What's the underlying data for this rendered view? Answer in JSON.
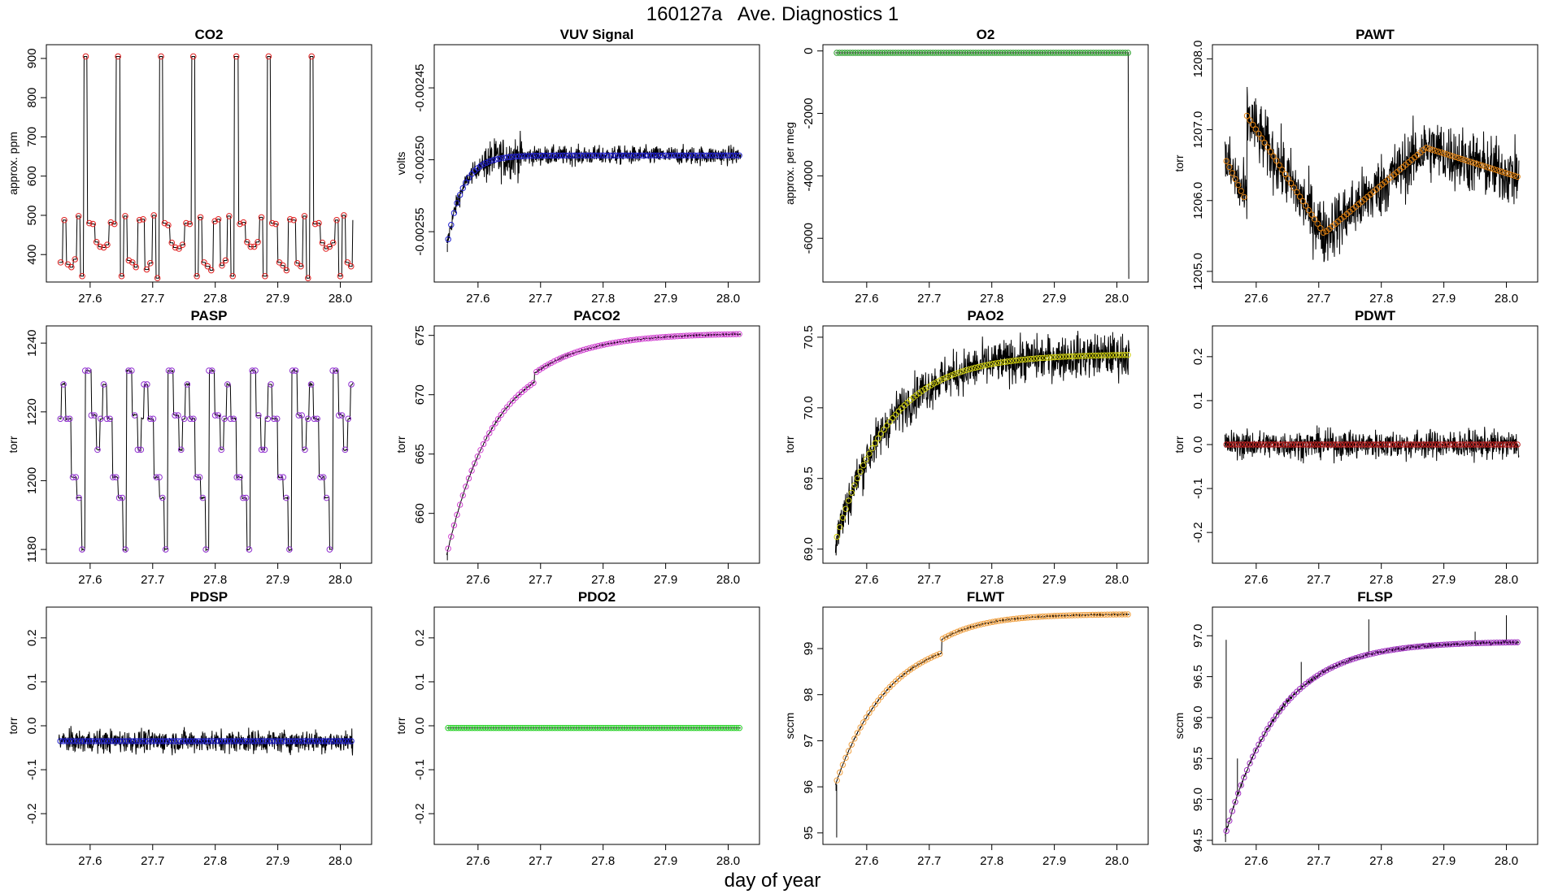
{
  "figure": {
    "title": "160127a   Ave. Diagnostics 1",
    "xlabel": "day of year"
  },
  "chart_data": [
    {
      "type": "line",
      "title": "CO2",
      "ylabel": "approx. ppm",
      "xlim": [
        27.53,
        28.05
      ],
      "ylim": [
        330,
        935
      ],
      "xticks": [
        "27.6",
        "27.7",
        "27.8",
        "27.9",
        "28.0"
      ],
      "yticks": [
        "400",
        "500",
        "600",
        "700",
        "800",
        "900"
      ],
      "series": [
        {
          "name": "",
          "color": "#000000",
          "marker_color": "#e02020",
          "shape": "co2"
        }
      ],
      "x": [
        27.55,
        28.02
      ]
    },
    {
      "type": "line",
      "title": "VUV Signal",
      "ylabel": "volts",
      "xlim": [
        27.53,
        28.05
      ],
      "ylim": [
        -0.002585,
        -0.00242
      ],
      "xticks": [
        "27.6",
        "27.7",
        "27.8",
        "27.9",
        "28.0"
      ],
      "yticks": [
        "-0.00255",
        "-0.00250",
        "-0.00245"
      ],
      "series": [
        {
          "name": "",
          "color": "#000000",
          "marker_color": "#2020d0",
          "shape": "vuv"
        }
      ],
      "x": [
        27.55,
        28.02
      ]
    },
    {
      "type": "line",
      "title": "O2",
      "ylabel": "approx. per meg",
      "xlim": [
        27.53,
        28.05
      ],
      "ylim": [
        -7400,
        200
      ],
      "xticks": [
        "27.6",
        "27.7",
        "27.8",
        "27.9",
        "28.0"
      ],
      "yticks": [
        "-6000",
        "-4000",
        "-2000",
        "0"
      ],
      "series": [
        {
          "name": "",
          "color": "#000000",
          "marker_color": "#2ea02e",
          "shape": "o2"
        }
      ],
      "x": [
        27.55,
        28.02
      ]
    },
    {
      "type": "line",
      "title": "PAWT",
      "ylabel": "torr",
      "xlim": [
        27.53,
        28.05
      ],
      "ylim": [
        1204.85,
        1208.2
      ],
      "xticks": [
        "27.6",
        "27.7",
        "27.8",
        "27.9",
        "28.0"
      ],
      "yticks": [
        "1205.0",
        "1206.0",
        "1207.0",
        "1208.0"
      ],
      "series": [
        {
          "name": "",
          "color": "#000000",
          "marker_color": "#e08010",
          "shape": "pawt"
        }
      ],
      "x": [
        27.55,
        28.02
      ]
    },
    {
      "type": "line",
      "title": "PASP",
      "ylabel": "torr",
      "xlim": [
        27.53,
        28.05
      ],
      "ylim": [
        1176,
        1245
      ],
      "xticks": [
        "27.6",
        "27.7",
        "27.8",
        "27.9",
        "28.0"
      ],
      "yticks": [
        "1180",
        "1200",
        "1220",
        "1240"
      ],
      "series": [
        {
          "name": "",
          "color": "#000000",
          "marker_color": "#9030d0",
          "shape": "pasp"
        }
      ],
      "x": [
        27.55,
        28.02
      ]
    },
    {
      "type": "line",
      "title": "PACO2",
      "ylabel": "torr",
      "xlim": [
        27.53,
        28.05
      ],
      "ylim": [
        655.8,
        675.8
      ],
      "xticks": [
        "27.6",
        "27.7",
        "27.8",
        "27.9",
        "28.0"
      ],
      "yticks": [
        "660",
        "665",
        "670",
        "675"
      ],
      "series": [
        {
          "name": "",
          "color": "#000000",
          "marker_color": "#d040d0",
          "shape": "paco2"
        }
      ],
      "x": [
        27.55,
        28.02
      ]
    },
    {
      "type": "line",
      "title": "PAO2",
      "ylabel": "torr",
      "xlim": [
        27.53,
        28.05
      ],
      "ylim": [
        68.9,
        70.58
      ],
      "xticks": [
        "27.6",
        "27.7",
        "27.8",
        "27.9",
        "28.0"
      ],
      "yticks": [
        "69.0",
        "69.5",
        "70.0",
        "70.5"
      ],
      "series": [
        {
          "name": "",
          "color": "#000000",
          "marker_color": "#d0d010",
          "shape": "pao2"
        }
      ],
      "x": [
        27.55,
        28.02
      ]
    },
    {
      "type": "line",
      "title": "PDWT",
      "ylabel": "torr",
      "xlim": [
        27.53,
        28.05
      ],
      "ylim": [
        -0.27,
        0.27
      ],
      "xticks": [
        "27.6",
        "27.7",
        "27.8",
        "27.9",
        "28.0"
      ],
      "yticks": [
        "-0.2",
        "-0.1",
        "0.0",
        "0.1",
        "0.2"
      ],
      "series": [
        {
          "name": "",
          "color": "#000000",
          "marker_color": "#c02020",
          "shape": "pdwt"
        }
      ],
      "x": [
        27.55,
        28.02
      ]
    },
    {
      "type": "line",
      "title": "PDSP",
      "ylabel": "torr",
      "xlim": [
        27.53,
        28.05
      ],
      "ylim": [
        -0.27,
        0.27
      ],
      "xticks": [
        "27.6",
        "27.7",
        "27.8",
        "27.9",
        "28.0"
      ],
      "yticks": [
        "-0.2",
        "-0.1",
        "0.0",
        "0.1",
        "0.2"
      ],
      "series": [
        {
          "name": "",
          "color": "#000000",
          "marker_color": "#2020d0",
          "shape": "pdsp"
        }
      ],
      "x": [
        27.55,
        28.02
      ]
    },
    {
      "type": "line",
      "title": "PDO2",
      "ylabel": "torr",
      "xlim": [
        27.53,
        28.05
      ],
      "ylim": [
        -0.27,
        0.27
      ],
      "xticks": [
        "27.6",
        "27.7",
        "27.8",
        "27.9",
        "28.0"
      ],
      "yticks": [
        "-0.2",
        "-0.1",
        "0.0",
        "0.1",
        "0.2"
      ],
      "series": [
        {
          "name": "",
          "color": "#000000",
          "marker_color": "#20d020",
          "shape": "pdo2"
        }
      ],
      "x": [
        27.55,
        28.02
      ]
    },
    {
      "type": "line",
      "title": "FLWT",
      "ylabel": "sccm",
      "xlim": [
        27.53,
        28.05
      ],
      "ylim": [
        94.75,
        99.9
      ],
      "xticks": [
        "27.6",
        "27.7",
        "27.8",
        "27.9",
        "28.0"
      ],
      "yticks": [
        "95",
        "96",
        "97",
        "98",
        "99"
      ],
      "series": [
        {
          "name": "",
          "color": "#000000",
          "marker_color": "#f0a040",
          "shape": "flwt"
        }
      ],
      "x": [
        27.55,
        28.02
      ]
    },
    {
      "type": "line",
      "title": "FLSP",
      "ylabel": "sccm",
      "xlim": [
        27.53,
        28.05
      ],
      "ylim": [
        94.45,
        97.35
      ],
      "xticks": [
        "27.6",
        "27.7",
        "27.8",
        "27.9",
        "28.0"
      ],
      "yticks": [
        "94.5",
        "95.0",
        "95.5",
        "96.0",
        "96.5",
        "97.0"
      ],
      "series": [
        {
          "name": "",
          "color": "#000000",
          "marker_color": "#a030c0",
          "shape": "flsp"
        }
      ],
      "x": [
        27.55,
        28.02
      ]
    }
  ]
}
